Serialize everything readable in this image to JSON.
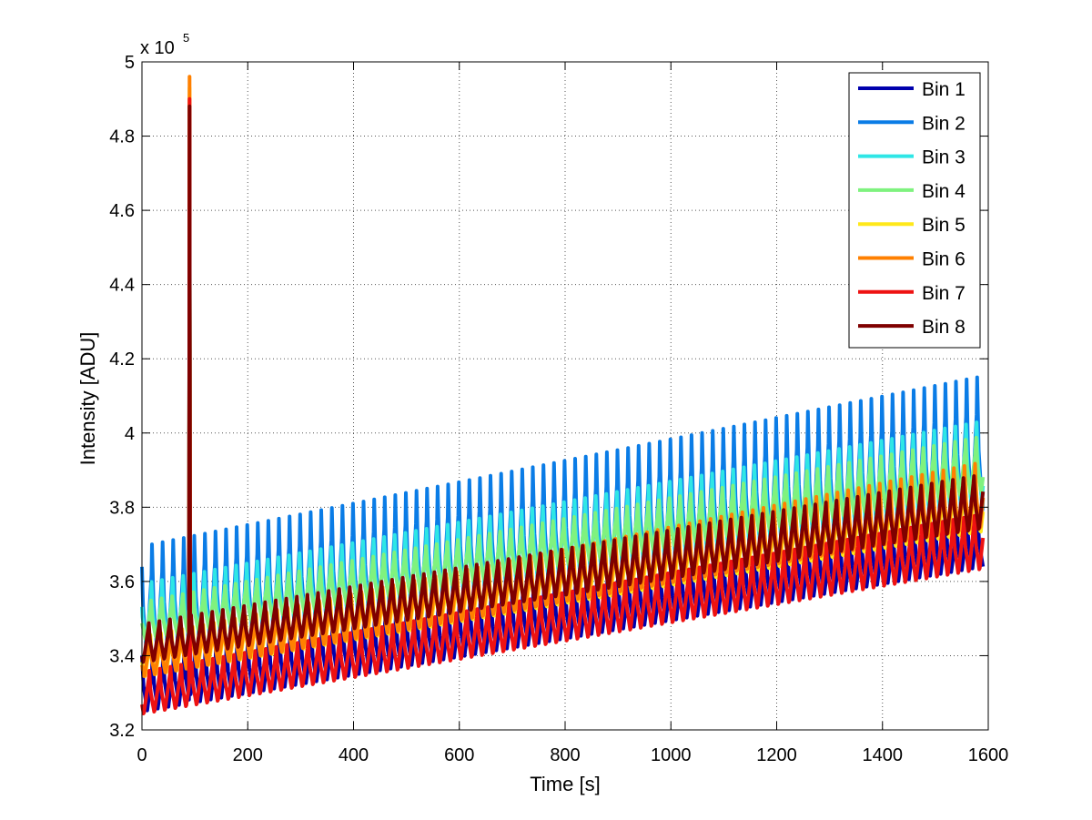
{
  "chart_data": {
    "type": "line",
    "title": "",
    "xlabel": "Time [s]",
    "ylabel": "Intensity [ADU]",
    "y_exponent_label": "x 10",
    "y_exponent_power": "5",
    "xlim": [
      0,
      1600
    ],
    "ylim": [
      3.2,
      5.0
    ],
    "y_scale_factor": 100000,
    "x_ticks": [
      0,
      200,
      400,
      600,
      800,
      1000,
      1200,
      1400,
      1600
    ],
    "x_tick_labels": [
      "0",
      "200",
      "400",
      "600",
      "800",
      "1000",
      "1200",
      "1400",
      "1600"
    ],
    "y_ticks": [
      3.2,
      3.4,
      3.6,
      3.8,
      4.0,
      4.2,
      4.4,
      4.6,
      4.8,
      5.0
    ],
    "y_tick_labels": [
      "3.2",
      "3.4",
      "3.6",
      "3.8",
      "4",
      "4.2",
      "4.4",
      "4.6",
      "4.8",
      "5"
    ],
    "grid": true,
    "legend_position": "top-right",
    "oscillation_period_s": 20,
    "x_start": 0,
    "x_end": 1590,
    "spike": {
      "x": 90,
      "description": "single-sample outlier in all bins"
    },
    "series": [
      {
        "name": "Bin 1",
        "color": "#0000ad",
        "trough_start": 3.25,
        "trough_end": 3.64,
        "peak_start": 3.4,
        "peak_end": 3.78,
        "spike_peak": 4.87
      },
      {
        "name": "Bin 2",
        "color": "#0a7ce6",
        "trough_start": 3.4,
        "trough_end": 3.79,
        "peak_start": 3.7,
        "peak_end": 4.16,
        "spike_peak": 4.88
      },
      {
        "name": "Bin 3",
        "color": "#2fe6e6",
        "trough_start": 3.43,
        "trough_end": 3.82,
        "peak_start": 3.6,
        "peak_end": 4.04,
        "spike_peak": 4.88
      },
      {
        "name": "Bin 4",
        "color": "#7ff27f",
        "trough_start": 3.44,
        "trough_end": 3.84,
        "peak_start": 3.55,
        "peak_end": 4.0,
        "spike_peak": 4.89
      },
      {
        "name": "Bin 5",
        "color": "#ffe81a",
        "trough_start": 3.34,
        "trough_end": 3.73,
        "peak_start": 3.46,
        "peak_end": 3.9,
        "spike_peak": 4.93
      },
      {
        "name": "Bin 6",
        "color": "#ff8000",
        "trough_start": 3.34,
        "trough_end": 3.74,
        "peak_start": 3.46,
        "peak_end": 3.94,
        "spike_peak": 4.96
      },
      {
        "name": "Bin 7",
        "color": "#ee1212",
        "trough_start": 3.24,
        "trough_end": 3.63,
        "peak_start": 3.37,
        "peak_end": 3.8,
        "spike_peak": 4.9
      },
      {
        "name": "Bin 8",
        "color": "#7f0000",
        "trough_start": 3.38,
        "trough_end": 3.74,
        "peak_start": 3.5,
        "peak_end": 3.91,
        "spike_peak": 4.88
      }
    ]
  }
}
